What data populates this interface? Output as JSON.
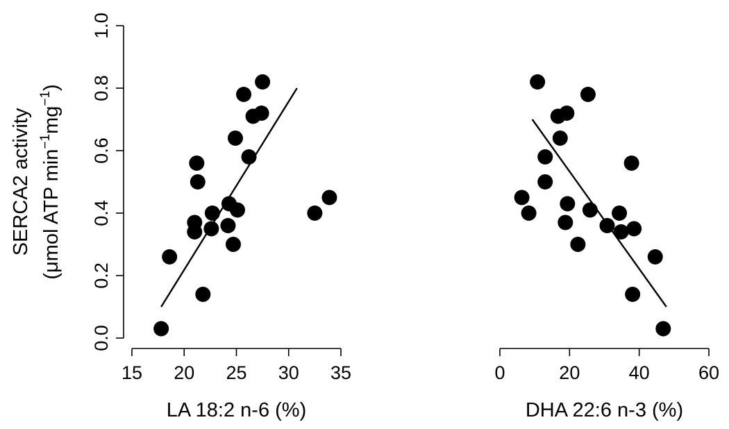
{
  "ylabel_line1": "SERCA2 activity",
  "ylabel_line2_parts": [
    "(",
    "μ",
    "mol ATP  min",
    "−1",
    "mg",
    "−1",
    ")"
  ],
  "chart_data": [
    {
      "type": "scatter",
      "xlabel": "LA 18:2 n-6 (%)",
      "ylabel": "SERCA2 activity (μmol ATP min−1 mg−1)",
      "xlim": [
        15,
        35
      ],
      "ylim": [
        0,
        1.0
      ],
      "xticks": [
        "15",
        "20",
        "25",
        "30",
        "35"
      ],
      "yticks": [
        "0.0",
        "0.2",
        "0.4",
        "0.6",
        "0.8",
        "1.0"
      ],
      "grid": false,
      "x": [
        17.8,
        18.6,
        21.0,
        21.0,
        21.2,
        21.3,
        21.8,
        22.6,
        22.7,
        24.2,
        24.3,
        24.7,
        24.9,
        25.1,
        25.7,
        26.2,
        26.6,
        27.4,
        27.5,
        32.5,
        33.9
      ],
      "y": [
        0.03,
        0.26,
        0.37,
        0.34,
        0.56,
        0.5,
        0.14,
        0.35,
        0.4,
        0.36,
        0.43,
        0.3,
        0.64,
        0.41,
        0.78,
        0.58,
        0.71,
        0.72,
        0.82,
        0.4,
        0.45
      ],
      "trend": {
        "x": [
          17.8,
          30.8
        ],
        "y": [
          0.1,
          0.8
        ]
      }
    },
    {
      "type": "scatter",
      "xlabel": "DHA 22:6 n-3 (%)",
      "ylabel": "",
      "xlim": [
        0,
        60
      ],
      "ylim": [
        0,
        1.0
      ],
      "xticks": [
        "0",
        "20",
        "40",
        "60"
      ],
      "yticks": [],
      "grid": false,
      "x": [
        6.3,
        8.3,
        10.8,
        13.0,
        13.0,
        16.7,
        17.3,
        18.8,
        19.2,
        19.4,
        22.4,
        25.3,
        25.9,
        30.8,
        34.3,
        34.8,
        37.8,
        38.1,
        38.5,
        44.6,
        46.9
      ],
      "y": [
        0.45,
        0.4,
        0.82,
        0.5,
        0.58,
        0.71,
        0.64,
        0.37,
        0.72,
        0.43,
        0.3,
        0.78,
        0.41,
        0.36,
        0.4,
        0.34,
        0.56,
        0.14,
        0.35,
        0.26,
        0.03
      ],
      "trend": {
        "x": [
          9.3,
          47.8
        ],
        "y": [
          0.7,
          0.1
        ]
      }
    }
  ]
}
